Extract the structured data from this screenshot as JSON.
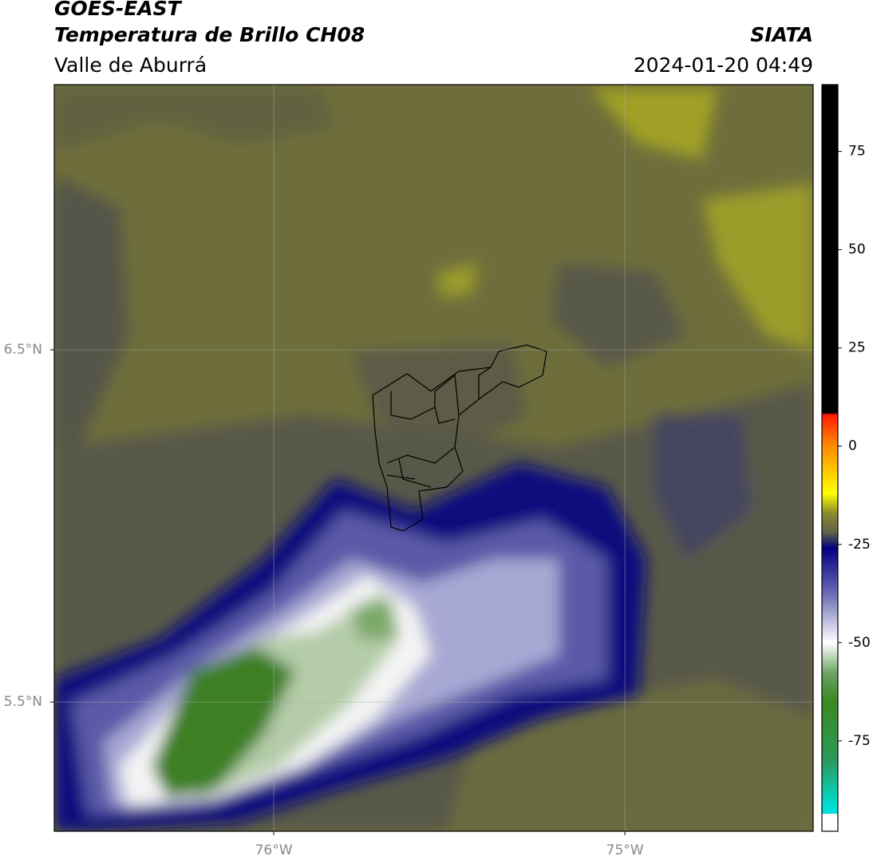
{
  "header": {
    "title": "GOES-EAST",
    "subtitle": "Temperatura de Brillo CH08",
    "region": "Valle de Aburrá",
    "source": "SIATA",
    "datetime": "2024-01-20 04:49"
  },
  "map": {
    "lonlim": [
      -76.625,
      -74.464
    ],
    "latlim": [
      5.133,
      7.253
    ],
    "lonticks": [
      {
        "value": -76,
        "label": "76°W"
      },
      {
        "value": -75,
        "label": "75°W"
      }
    ],
    "latticks": [
      {
        "value": 6.5,
        "label": "6.5°N"
      },
      {
        "value": 5.5,
        "label": "5.5°N"
      }
    ],
    "grid": true
  },
  "colorbar": {
    "lim": [
      -98,
      92
    ],
    "ticks": [
      75,
      50,
      25,
      0,
      -25,
      -50,
      -75
    ],
    "colormap": [
      [
        92,
        "#000000"
      ],
      [
        8.5,
        "#000000"
      ],
      [
        8,
        "#ff1a00"
      ],
      [
        0,
        "#ff8c00"
      ],
      [
        -12,
        "#ffff00"
      ],
      [
        -17,
        "#8c8c30"
      ],
      [
        -22,
        "#606048"
      ],
      [
        -26,
        "#000080"
      ],
      [
        -38,
        "#7070b8"
      ],
      [
        -50,
        "#ffffff"
      ],
      [
        -58,
        "#6aa060"
      ],
      [
        -65,
        "#3a8a20"
      ],
      [
        -80,
        "#2a9a5a"
      ],
      [
        -92,
        "#00e0d8"
      ],
      [
        -93.5,
        "#00e0d8"
      ],
      [
        -93.6,
        "#ffffff"
      ],
      [
        -98,
        "#ffffff"
      ]
    ]
  }
}
